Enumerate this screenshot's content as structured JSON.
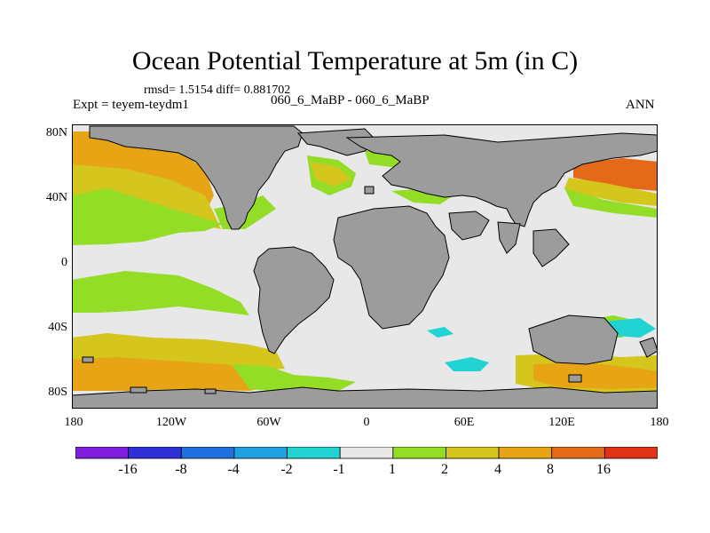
{
  "title": "Ocean Potential Temperature at 5m (in C)",
  "stats": "rmsd= 1.5154  diff= 0.881702",
  "experiment": "Expt = teyem-teydm1",
  "runs": "060_6_MaBP - 060_6_MaBP",
  "season": "ANN",
  "colors": {
    "land": "#9c9c9c",
    "near_zero": "#e8e8e8",
    "bin_1_2": "#93dd26",
    "bin_2_4": "#d4c61c",
    "bin_4_8": "#e7a415",
    "bin_8_16": "#e46a1a",
    "bin_gt_16": "#df3217",
    "bin_m1_m2": "#22d3d3"
  },
  "y_ticks": [
    {
      "label": "80N",
      "lat": 80
    },
    {
      "label": "40N",
      "lat": 40
    },
    {
      "label": "0",
      "lat": 0
    },
    {
      "label": "40S",
      "lat": -40
    },
    {
      "label": "80S",
      "lat": -80
    }
  ],
  "x_ticks": [
    {
      "label": "180",
      "lon": -180
    },
    {
      "label": "120W",
      "lon": -120
    },
    {
      "label": "60W",
      "lon": -60
    },
    {
      "label": "0",
      "lon": 0
    },
    {
      "label": "60E",
      "lon": 60
    },
    {
      "label": "120E",
      "lon": 120
    },
    {
      "label": "180",
      "lon": 180
    }
  ],
  "colorbar": {
    "colors": [
      "#7f1fdd",
      "#2f2fd8",
      "#1f6fe0",
      "#1fa0e0",
      "#22d3d3",
      "#e8e8e8",
      "#93dd26",
      "#d4c61c",
      "#e7a415",
      "#e46a1a",
      "#df3217"
    ],
    "labels": [
      "-16",
      "-8",
      "-4",
      "-2",
      "-1",
      "1",
      "2",
      "4",
      "8",
      "16"
    ]
  }
}
